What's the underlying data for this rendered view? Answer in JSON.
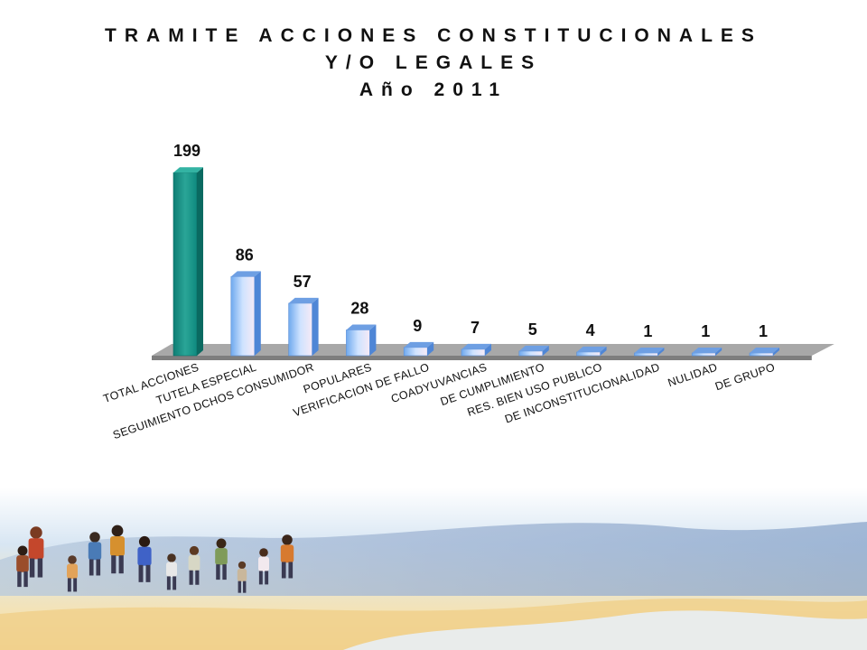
{
  "title_lines": [
    "TRAMITE ACCIONES CONSTITUCIONALES",
    "Y/O LEGALES",
    "Año 2011"
  ],
  "chart_data": {
    "type": "bar",
    "title": "TRAMITE ACCIONES CONSTITUCIONALES Y/O LEGALES Año 2011",
    "categories": [
      "TOTAL ACCIONES",
      "TUTELA ESPECIAL",
      "SEGUIMIENTO DCHOS CONSUMIDOR",
      "POPULARES",
      "VERIFICACION DE FALLO",
      "COADYUVANCIAS",
      "DE CUMPLIMIENTO",
      "RES. BIEN USO PUBLICO",
      "DE INCONSTITUCIONALIDAD",
      "NULIDAD",
      "DE GRUPO"
    ],
    "values": [
      199,
      86,
      57,
      28,
      9,
      7,
      5,
      4,
      1,
      1,
      1
    ],
    "data_labels": [
      "199",
      "86",
      "57",
      "28",
      "9",
      "7",
      "5",
      "4",
      "1",
      "1",
      "1"
    ],
    "ylim": [
      0,
      210
    ],
    "grid": false,
    "legend": "none",
    "colors": {
      "highlight_bar": "#1f9488",
      "bar": "#a9cdf7",
      "floor": "#9a9a9a"
    }
  }
}
